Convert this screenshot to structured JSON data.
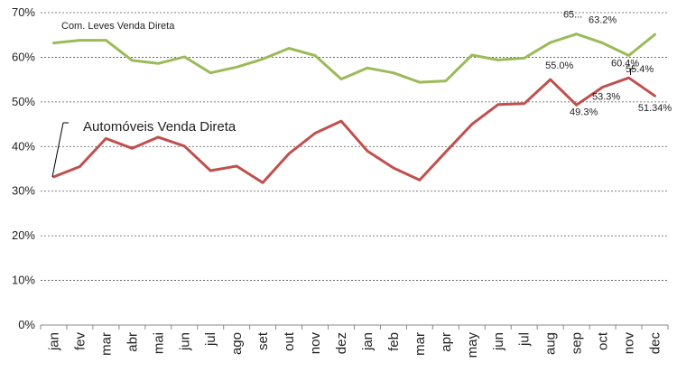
{
  "chart_data": {
    "type": "line",
    "categories": [
      "jan",
      "fev",
      "mar",
      "abr",
      "mai",
      "jun",
      "jul",
      "ago",
      "set",
      "out",
      "nov",
      "dez",
      "jan",
      "feb",
      "mar",
      "apr",
      "may",
      "jun",
      "jul",
      "aug",
      "sep",
      "oct",
      "nov",
      "dec"
    ],
    "ylim": [
      0,
      70
    ],
    "yticks": [
      0,
      10,
      20,
      30,
      40,
      50,
      60,
      70
    ],
    "ytick_labels": [
      "0%",
      "10%",
      "20%",
      "30%",
      "40%",
      "50%",
      "60%",
      "70%"
    ],
    "grid": "horizontal dashed",
    "series": [
      {
        "name": "Com. Leves Venda Direta",
        "color": "#9bbb59",
        "values": [
          63.2,
          63.8,
          63.8,
          59.3,
          58.6,
          60.1,
          56.5,
          57.8,
          59.6,
          62.0,
          60.4,
          55.1,
          57.6,
          56.5,
          54.4,
          54.7,
          60.5,
          59.4,
          59.8,
          63.3,
          65.2,
          63.2,
          60.4,
          65.1
        ]
      },
      {
        "name": "Automóveis Venda Direta",
        "color": "#c0504d",
        "values": [
          33.2,
          35.5,
          41.8,
          39.6,
          42.1,
          40.1,
          34.6,
          35.6,
          31.9,
          38.4,
          43.0,
          45.7,
          39.0,
          35.2,
          32.5,
          38.8,
          45.0,
          49.4,
          49.6,
          55.0,
          49.3,
          53.3,
          55.4,
          51.34
        ]
      }
    ],
    "data_labels": [
      {
        "series": 0,
        "index": 20,
        "text": "65..."
      },
      {
        "series": 0,
        "index": 21,
        "text": "63.2%"
      },
      {
        "series": 0,
        "index": 22,
        "text": "60.4%"
      },
      {
        "series": 1,
        "index": 19,
        "text": "55.0%"
      },
      {
        "series": 1,
        "index": 20,
        "text": "49.3%"
      },
      {
        "series": 1,
        "index": 21,
        "text": "53.3%"
      },
      {
        "series": 1,
        "index": 22,
        "text": "55.4%"
      },
      {
        "series": 1,
        "index": 23,
        "text": "51.34%"
      }
    ]
  }
}
